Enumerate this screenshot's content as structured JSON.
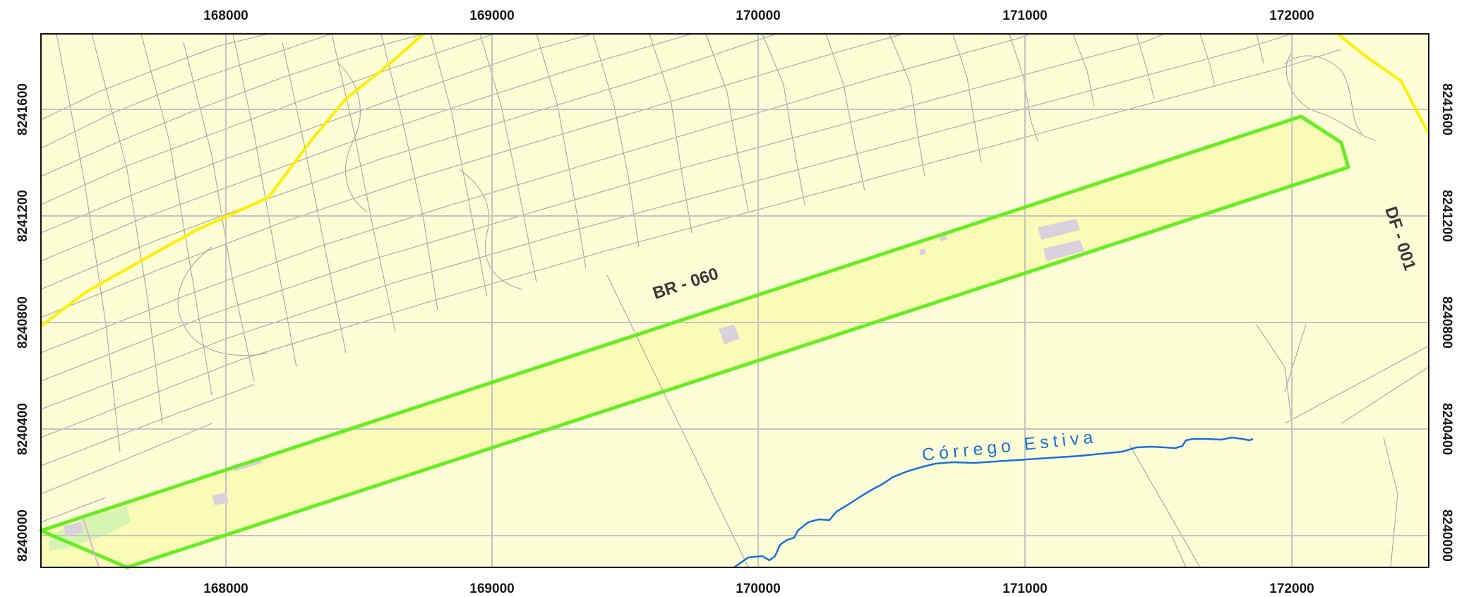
{
  "map": {
    "x_ticks": [
      "168000",
      "169000",
      "170000",
      "171000",
      "172000"
    ],
    "y_ticks": [
      "8241600",
      "8241200",
      "8240800",
      "8240400",
      "8240000"
    ],
    "labels": {
      "road_br": "BR - 060",
      "road_df": "DF - 001",
      "stream": "Córrego Estiva"
    },
    "colors": {
      "background": "#fdfdd6",
      "buffer_fill": "#fbfbb8",
      "buffer_outline": "#66ee22",
      "highway": "#ffee00",
      "stream": "#1a6fe0",
      "streets": "#a6a6a6",
      "grid": "#c4c4c4",
      "buildings": "#d9d2dc"
    }
  }
}
